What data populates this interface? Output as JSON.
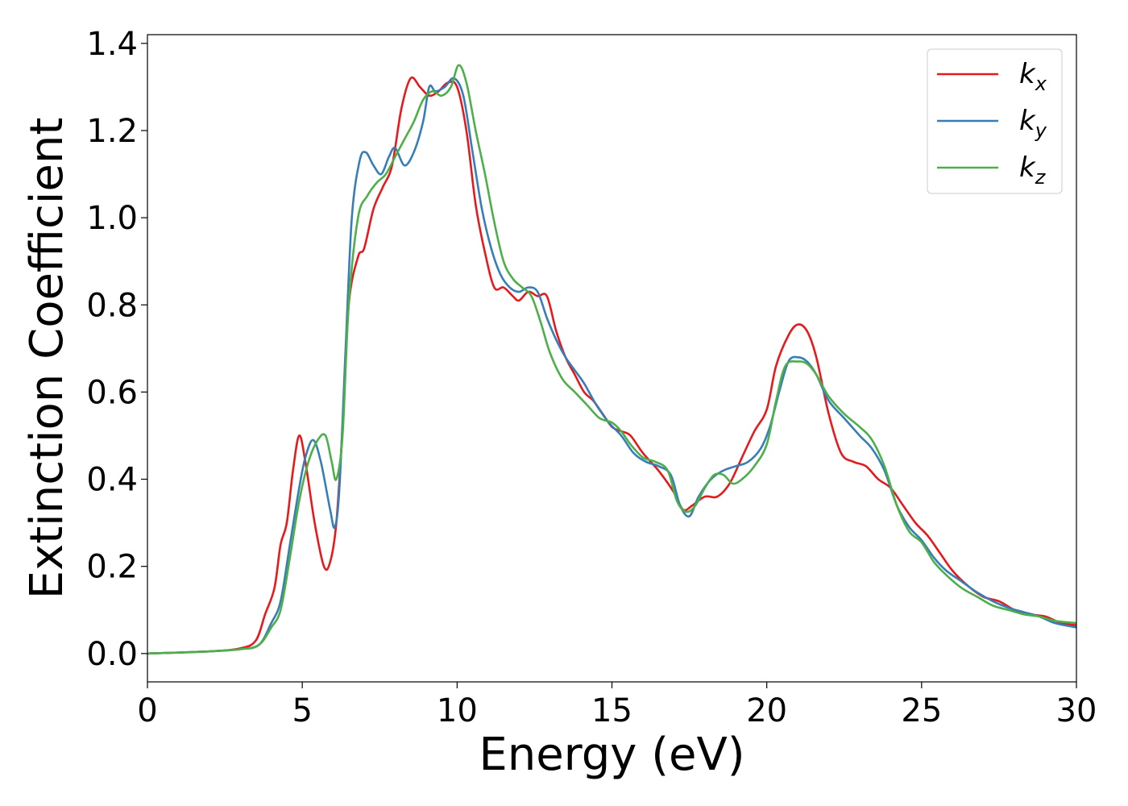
{
  "chart_data": {
    "type": "line",
    "xlabel": "Energy (eV)",
    "ylabel": "Extinction Coefficient",
    "xlim": [
      0,
      30
    ],
    "ylim": [
      -0.065,
      1.42
    ],
    "xticks": [
      0,
      5,
      10,
      15,
      20,
      25,
      30
    ],
    "xtick_labels": [
      "0",
      "5",
      "10",
      "15",
      "20",
      "25",
      "30"
    ],
    "yticks": [
      0.0,
      0.2,
      0.4,
      0.6,
      0.8,
      1.0,
      1.2,
      1.4
    ],
    "ytick_labels": [
      "0.0",
      "0.2",
      "0.4",
      "0.6",
      "0.8",
      "1.0",
      "1.2",
      "1.4"
    ],
    "grid": false,
    "legend_position": "top-right",
    "series": [
      {
        "name": "k_x",
        "label_main": "k",
        "label_sub": "x",
        "color": "#e41a1c",
        "points": [
          [
            0,
            0.0
          ],
          [
            2,
            0.005
          ],
          [
            3,
            0.012
          ],
          [
            3.5,
            0.03
          ],
          [
            3.8,
            0.09
          ],
          [
            4.1,
            0.15
          ],
          [
            4.3,
            0.25
          ],
          [
            4.5,
            0.3
          ],
          [
            4.7,
            0.42
          ],
          [
            4.9,
            0.5
          ],
          [
            5.1,
            0.44
          ],
          [
            5.4,
            0.3
          ],
          [
            5.7,
            0.2
          ],
          [
            5.9,
            0.21
          ],
          [
            6.1,
            0.3
          ],
          [
            6.3,
            0.52
          ],
          [
            6.5,
            0.8
          ],
          [
            6.8,
            0.91
          ],
          [
            7.0,
            0.93
          ],
          [
            7.3,
            1.02
          ],
          [
            7.6,
            1.07
          ],
          [
            7.9,
            1.12
          ],
          [
            8.2,
            1.25
          ],
          [
            8.5,
            1.32
          ],
          [
            8.8,
            1.3
          ],
          [
            9.1,
            1.28
          ],
          [
            9.4,
            1.29
          ],
          [
            9.7,
            1.31
          ],
          [
            10.0,
            1.3
          ],
          [
            10.3,
            1.2
          ],
          [
            10.6,
            1.03
          ],
          [
            10.9,
            0.92
          ],
          [
            11.2,
            0.84
          ],
          [
            11.5,
            0.84
          ],
          [
            11.8,
            0.82
          ],
          [
            12.0,
            0.81
          ],
          [
            12.3,
            0.83
          ],
          [
            12.6,
            0.82
          ],
          [
            12.9,
            0.82
          ],
          [
            13.2,
            0.74
          ],
          [
            13.5,
            0.68
          ],
          [
            13.8,
            0.64
          ],
          [
            14.1,
            0.6
          ],
          [
            14.4,
            0.58
          ],
          [
            14.7,
            0.55
          ],
          [
            15.0,
            0.52
          ],
          [
            15.3,
            0.51
          ],
          [
            15.6,
            0.5
          ],
          [
            16.0,
            0.46
          ],
          [
            16.5,
            0.42
          ],
          [
            17.0,
            0.37
          ],
          [
            17.3,
            0.33
          ],
          [
            17.6,
            0.34
          ],
          [
            18.0,
            0.36
          ],
          [
            18.4,
            0.36
          ],
          [
            18.8,
            0.39
          ],
          [
            19.2,
            0.45
          ],
          [
            19.6,
            0.51
          ],
          [
            20.0,
            0.56
          ],
          [
            20.3,
            0.66
          ],
          [
            20.7,
            0.73
          ],
          [
            21.0,
            0.755
          ],
          [
            21.3,
            0.74
          ],
          [
            21.6,
            0.68
          ],
          [
            22.0,
            0.55
          ],
          [
            22.4,
            0.46
          ],
          [
            22.8,
            0.44
          ],
          [
            23.2,
            0.43
          ],
          [
            23.6,
            0.4
          ],
          [
            24.0,
            0.38
          ],
          [
            24.4,
            0.34
          ],
          [
            24.8,
            0.3
          ],
          [
            25.2,
            0.27
          ],
          [
            25.6,
            0.23
          ],
          [
            26.0,
            0.19
          ],
          [
            26.5,
            0.155
          ],
          [
            27.0,
            0.13
          ],
          [
            27.5,
            0.12
          ],
          [
            28.0,
            0.1
          ],
          [
            28.5,
            0.09
          ],
          [
            29.0,
            0.085
          ],
          [
            29.5,
            0.07
          ],
          [
            30,
            0.065
          ]
        ]
      },
      {
        "name": "k_y",
        "label_main": "k",
        "label_sub": "y",
        "color": "#377eb8",
        "points": [
          [
            0,
            0.0
          ],
          [
            2,
            0.005
          ],
          [
            3,
            0.01
          ],
          [
            3.6,
            0.02
          ],
          [
            4.0,
            0.07
          ],
          [
            4.3,
            0.12
          ],
          [
            4.6,
            0.25
          ],
          [
            4.9,
            0.38
          ],
          [
            5.1,
            0.45
          ],
          [
            5.35,
            0.49
          ],
          [
            5.6,
            0.44
          ],
          [
            5.9,
            0.33
          ],
          [
            6.05,
            0.29
          ],
          [
            6.2,
            0.38
          ],
          [
            6.4,
            0.7
          ],
          [
            6.6,
            1.0
          ],
          [
            6.85,
            1.13
          ],
          [
            7.05,
            1.15
          ],
          [
            7.3,
            1.12
          ],
          [
            7.55,
            1.1
          ],
          [
            7.8,
            1.14
          ],
          [
            8.0,
            1.16
          ],
          [
            8.3,
            1.12
          ],
          [
            8.6,
            1.15
          ],
          [
            8.9,
            1.22
          ],
          [
            9.1,
            1.3
          ],
          [
            9.3,
            1.29
          ],
          [
            9.6,
            1.3
          ],
          [
            9.9,
            1.32
          ],
          [
            10.2,
            1.28
          ],
          [
            10.5,
            1.15
          ],
          [
            10.8,
            1.02
          ],
          [
            11.1,
            0.93
          ],
          [
            11.4,
            0.87
          ],
          [
            11.7,
            0.84
          ],
          [
            12.0,
            0.83
          ],
          [
            12.3,
            0.84
          ],
          [
            12.6,
            0.83
          ],
          [
            12.9,
            0.77
          ],
          [
            13.2,
            0.72
          ],
          [
            13.5,
            0.68
          ],
          [
            13.8,
            0.65
          ],
          [
            14.1,
            0.62
          ],
          [
            14.5,
            0.57
          ],
          [
            14.9,
            0.53
          ],
          [
            15.3,
            0.5
          ],
          [
            15.7,
            0.46
          ],
          [
            16.1,
            0.44
          ],
          [
            16.5,
            0.43
          ],
          [
            16.9,
            0.41
          ],
          [
            17.2,
            0.34
          ],
          [
            17.5,
            0.315
          ],
          [
            17.8,
            0.36
          ],
          [
            18.2,
            0.4
          ],
          [
            18.6,
            0.42
          ],
          [
            19.0,
            0.43
          ],
          [
            19.4,
            0.44
          ],
          [
            19.8,
            0.47
          ],
          [
            20.1,
            0.52
          ],
          [
            20.4,
            0.6
          ],
          [
            20.7,
            0.67
          ],
          [
            21.0,
            0.68
          ],
          [
            21.3,
            0.67
          ],
          [
            21.6,
            0.64
          ],
          [
            22.0,
            0.58
          ],
          [
            22.5,
            0.54
          ],
          [
            23.0,
            0.5
          ],
          [
            23.4,
            0.47
          ],
          [
            23.8,
            0.42
          ],
          [
            24.2,
            0.34
          ],
          [
            24.6,
            0.29
          ],
          [
            25.0,
            0.26
          ],
          [
            25.4,
            0.22
          ],
          [
            25.8,
            0.19
          ],
          [
            26.3,
            0.165
          ],
          [
            26.8,
            0.14
          ],
          [
            27.3,
            0.12
          ],
          [
            27.8,
            0.105
          ],
          [
            28.3,
            0.095
          ],
          [
            28.8,
            0.085
          ],
          [
            29.3,
            0.07
          ],
          [
            30,
            0.06
          ]
        ]
      },
      {
        "name": "k_z",
        "label_main": "k",
        "label_sub": "z",
        "color": "#4daf4a",
        "points": [
          [
            0,
            0.0
          ],
          [
            2,
            0.005
          ],
          [
            3,
            0.01
          ],
          [
            3.6,
            0.02
          ],
          [
            4.0,
            0.06
          ],
          [
            4.3,
            0.1
          ],
          [
            4.6,
            0.22
          ],
          [
            4.9,
            0.35
          ],
          [
            5.2,
            0.44
          ],
          [
            5.5,
            0.49
          ],
          [
            5.75,
            0.5
          ],
          [
            5.95,
            0.44
          ],
          [
            6.1,
            0.4
          ],
          [
            6.3,
            0.5
          ],
          [
            6.5,
            0.8
          ],
          [
            6.8,
            1.0
          ],
          [
            7.1,
            1.05
          ],
          [
            7.4,
            1.08
          ],
          [
            7.7,
            1.1
          ],
          [
            8.0,
            1.14
          ],
          [
            8.3,
            1.18
          ],
          [
            8.6,
            1.22
          ],
          [
            8.9,
            1.27
          ],
          [
            9.2,
            1.29
          ],
          [
            9.5,
            1.28
          ],
          [
            9.8,
            1.3
          ],
          [
            10.05,
            1.35
          ],
          [
            10.3,
            1.31
          ],
          [
            10.6,
            1.2
          ],
          [
            10.9,
            1.1
          ],
          [
            11.2,
            0.99
          ],
          [
            11.5,
            0.9
          ],
          [
            11.8,
            0.86
          ],
          [
            12.1,
            0.84
          ],
          [
            12.4,
            0.82
          ],
          [
            12.7,
            0.76
          ],
          [
            13.0,
            0.69
          ],
          [
            13.4,
            0.63
          ],
          [
            13.8,
            0.6
          ],
          [
            14.2,
            0.57
          ],
          [
            14.6,
            0.54
          ],
          [
            15.0,
            0.53
          ],
          [
            15.3,
            0.51
          ],
          [
            15.6,
            0.48
          ],
          [
            16.0,
            0.45
          ],
          [
            16.4,
            0.44
          ],
          [
            16.8,
            0.42
          ],
          [
            17.1,
            0.35
          ],
          [
            17.4,
            0.325
          ],
          [
            17.7,
            0.34
          ],
          [
            18.0,
            0.38
          ],
          [
            18.3,
            0.41
          ],
          [
            18.6,
            0.41
          ],
          [
            18.9,
            0.39
          ],
          [
            19.2,
            0.4
          ],
          [
            19.6,
            0.43
          ],
          [
            20.0,
            0.48
          ],
          [
            20.3,
            0.58
          ],
          [
            20.6,
            0.66
          ],
          [
            21.0,
            0.67
          ],
          [
            21.3,
            0.665
          ],
          [
            21.6,
            0.64
          ],
          [
            22.0,
            0.59
          ],
          [
            22.5,
            0.55
          ],
          [
            23.0,
            0.52
          ],
          [
            23.4,
            0.49
          ],
          [
            23.8,
            0.43
          ],
          [
            24.2,
            0.34
          ],
          [
            24.6,
            0.28
          ],
          [
            25.0,
            0.255
          ],
          [
            25.4,
            0.21
          ],
          [
            25.8,
            0.18
          ],
          [
            26.3,
            0.15
          ],
          [
            26.8,
            0.13
          ],
          [
            27.3,
            0.11
          ],
          [
            27.8,
            0.1
          ],
          [
            28.3,
            0.09
          ],
          [
            28.8,
            0.085
          ],
          [
            29.3,
            0.075
          ],
          [
            30,
            0.07
          ]
        ]
      }
    ]
  }
}
